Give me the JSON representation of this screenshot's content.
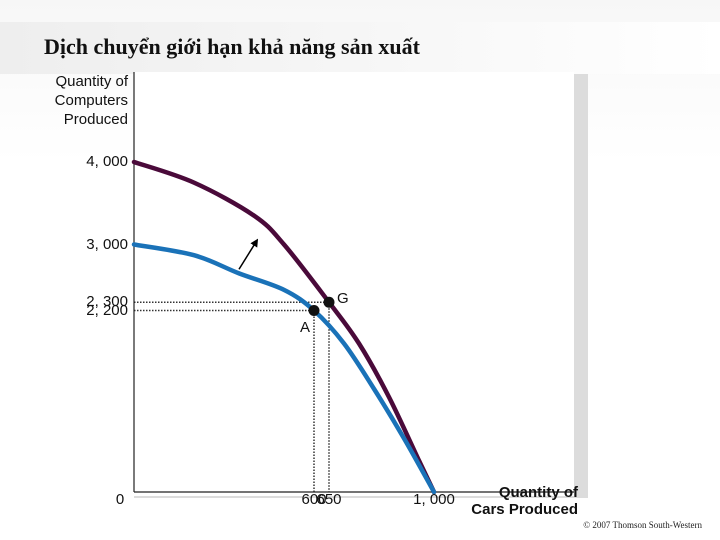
{
  "title": "Dịch chuyển giới hạn khả năng sản xuất",
  "copyright": "© 2007 Thomson South-Western",
  "chart_data": {
    "type": "line",
    "ylabel": [
      "Quantity of",
      "Computers",
      "Produced"
    ],
    "xlabel": [
      "Quantity of",
      "Cars Produced"
    ],
    "xlim": [
      0,
      1000
    ],
    "ylim": [
      0,
      4000
    ],
    "x_ticks": [
      {
        "value": 0,
        "label": "0"
      },
      {
        "value": 600,
        "label": "600"
      },
      {
        "value": 650,
        "label": "650"
      },
      {
        "value": 1000,
        "label": "1, 000"
      }
    ],
    "y_ticks": [
      {
        "value": 4000,
        "label": "4, 000"
      },
      {
        "value": 3000,
        "label": "3, 000"
      },
      {
        "value": 2300,
        "label": "2, 300"
      },
      {
        "value": 2200,
        "label": "2, 200"
      }
    ],
    "series": [
      {
        "color": "#4a0a3a",
        "points": [
          [
            0,
            4000
          ],
          [
            200,
            3750
          ],
          [
            400,
            3350
          ],
          [
            500,
            3000
          ],
          [
            650,
            2300
          ],
          [
            750,
            1800
          ],
          [
            850,
            1150
          ],
          [
            950,
            380
          ],
          [
            1000,
            0
          ]
        ]
      },
      {
        "color": "#1a72b8",
        "points": [
          [
            0,
            3000
          ],
          [
            200,
            2870
          ],
          [
            350,
            2650
          ],
          [
            500,
            2450
          ],
          [
            600,
            2200
          ],
          [
            700,
            1800
          ],
          [
            800,
            1250
          ],
          [
            900,
            650
          ],
          [
            1000,
            0
          ]
        ]
      }
    ],
    "points": [
      {
        "label": "A",
        "x": 600,
        "y": 2200
      },
      {
        "label": "G",
        "x": 650,
        "y": 2300
      }
    ],
    "arrow": {
      "from": [
        350,
        2700
      ],
      "to": [
        410,
        3050
      ]
    }
  }
}
